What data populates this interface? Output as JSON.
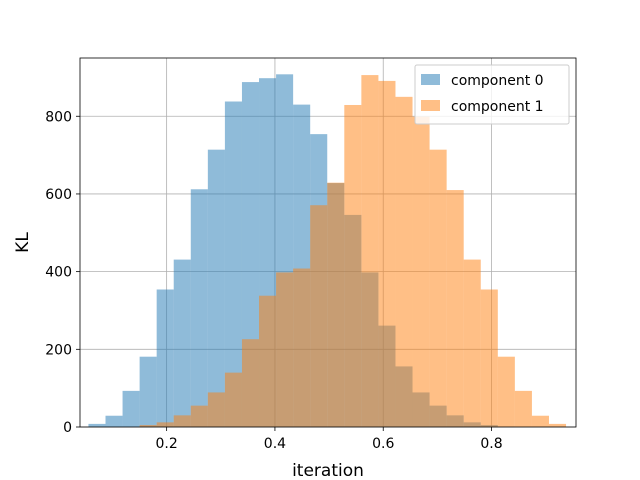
{
  "chart_data": {
    "type": "histogram",
    "xlabel": "iteration",
    "ylabel": "KL",
    "xlim": [
      0.04,
      0.956
    ],
    "ylim": [
      0,
      950
    ],
    "xticks": [
      0.2,
      0.4,
      0.6,
      0.8
    ],
    "xtick_labels": [
      "0.2",
      "0.4",
      "0.6",
      "0.8"
    ],
    "yticks": [
      0,
      200,
      400,
      600,
      800
    ],
    "ytick_labels": [
      "0",
      "200",
      "400",
      "600",
      "800"
    ],
    "grid": true,
    "legend_position": "top-right",
    "series": [
      {
        "name": "component 0",
        "color": "#1f77b4",
        "alpha": 0.5,
        "bin_edges": [
          0.0556,
          0.0871,
          0.1186,
          0.1501,
          0.1816,
          0.2131,
          0.2446,
          0.2761,
          0.3076,
          0.3391,
          0.3706,
          0.4021,
          0.4336,
          0.4651,
          0.4966,
          0.5281,
          0.5596,
          0.5911,
          0.6226,
          0.6541,
          0.6856,
          0.7171,
          0.7486,
          0.7801,
          0.8116,
          0.8431,
          0.8746,
          0.9061,
          0.9376
        ],
        "counts": [
          8,
          29,
          93,
          181,
          354,
          431,
          612,
          714,
          838,
          888,
          898,
          908,
          830,
          754,
          628,
          546,
          398,
          261,
          156,
          89,
          55,
          30,
          12,
          5,
          1,
          0,
          0,
          0
        ]
      },
      {
        "name": "component 1",
        "color": "#ff7f0e",
        "alpha": 0.5,
        "bin_edges": [
          0.0556,
          0.0871,
          0.1186,
          0.1501,
          0.1816,
          0.2131,
          0.2446,
          0.2761,
          0.3076,
          0.3391,
          0.3706,
          0.4021,
          0.4336,
          0.4651,
          0.4966,
          0.5281,
          0.5596,
          0.5911,
          0.6226,
          0.6541,
          0.6856,
          0.7171,
          0.7486,
          0.7801,
          0.8116,
          0.8431,
          0.8746,
          0.9061,
          0.9376
        ],
        "counts": [
          0,
          0,
          0,
          5,
          12,
          30,
          55,
          89,
          140,
          226,
          338,
          398,
          408,
          571,
          629,
          829,
          906,
          891,
          850,
          799,
          714,
          610,
          431,
          354,
          181,
          93,
          29,
          8
        ]
      }
    ]
  }
}
